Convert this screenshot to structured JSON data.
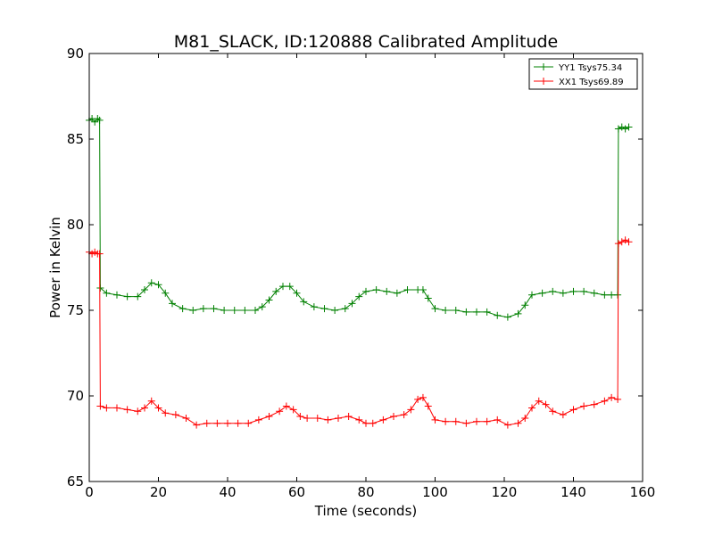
{
  "chart_data": {
    "type": "line",
    "title": "M81_SLACK, ID:120888 Calibrated Amplitude",
    "xlabel": "Time (seconds)",
    "ylabel": "Power in Kelvin",
    "xlim": [
      0,
      160
    ],
    "ylim": [
      65,
      90
    ],
    "xticks": [
      0,
      20,
      40,
      60,
      80,
      100,
      120,
      140,
      160
    ],
    "yticks": [
      65,
      70,
      75,
      80,
      85,
      90
    ],
    "grid": false,
    "legend_position": "top-right",
    "series": [
      {
        "name": "YY1 Tsys75.34",
        "color": "#008000",
        "marker": "+",
        "points": [
          [
            0.0,
            86.1
          ],
          [
            0.8,
            86.2
          ],
          [
            1.6,
            86.0
          ],
          [
            2.4,
            86.2
          ],
          [
            3.0,
            86.1
          ],
          [
            3.2,
            76.3
          ],
          [
            5,
            76.0
          ],
          [
            8,
            75.9
          ],
          [
            11,
            75.8
          ],
          [
            14,
            75.8
          ],
          [
            16,
            76.2
          ],
          [
            18,
            76.6
          ],
          [
            20,
            76.5
          ],
          [
            22,
            76.0
          ],
          [
            24,
            75.4
          ],
          [
            27,
            75.1
          ],
          [
            30,
            75.0
          ],
          [
            33,
            75.1
          ],
          [
            36,
            75.1
          ],
          [
            39,
            75.0
          ],
          [
            42,
            75.0
          ],
          [
            45,
            75.0
          ],
          [
            48,
            75.0
          ],
          [
            50,
            75.2
          ],
          [
            52,
            75.6
          ],
          [
            54,
            76.1
          ],
          [
            56,
            76.4
          ],
          [
            58,
            76.4
          ],
          [
            60,
            76.0
          ],
          [
            62,
            75.5
          ],
          [
            65,
            75.2
          ],
          [
            68,
            75.1
          ],
          [
            71,
            75.0
          ],
          [
            74,
            75.1
          ],
          [
            76,
            75.4
          ],
          [
            78,
            75.8
          ],
          [
            80,
            76.1
          ],
          [
            83,
            76.2
          ],
          [
            86,
            76.1
          ],
          [
            89,
            76.0
          ],
          [
            92,
            76.2
          ],
          [
            95,
            76.2
          ],
          [
            96.5,
            76.2
          ],
          [
            98,
            75.7
          ],
          [
            100,
            75.1
          ],
          [
            103,
            75.0
          ],
          [
            106,
            75.0
          ],
          [
            109,
            74.9
          ],
          [
            112,
            74.9
          ],
          [
            115,
            74.9
          ],
          [
            118,
            74.7
          ],
          [
            121,
            74.6
          ],
          [
            124,
            74.8
          ],
          [
            126,
            75.3
          ],
          [
            128,
            75.9
          ],
          [
            131,
            76.0
          ],
          [
            134,
            76.1
          ],
          [
            137,
            76.0
          ],
          [
            140,
            76.1
          ],
          [
            143,
            76.1
          ],
          [
            146,
            76.0
          ],
          [
            149,
            75.9
          ],
          [
            151,
            75.9
          ],
          [
            152.8,
            75.9
          ],
          [
            153,
            85.6
          ],
          [
            154,
            85.7
          ],
          [
            155,
            85.6
          ],
          [
            156,
            85.7
          ]
        ]
      },
      {
        "name": "XX1 Tsys69.89",
        "color": "#ff0000",
        "marker": "+",
        "points": [
          [
            0.0,
            78.4
          ],
          [
            0.8,
            78.3
          ],
          [
            1.6,
            78.4
          ],
          [
            2.4,
            78.3
          ],
          [
            3.0,
            78.3
          ],
          [
            3.2,
            69.4
          ],
          [
            5,
            69.3
          ],
          [
            8,
            69.3
          ],
          [
            11,
            69.2
          ],
          [
            14,
            69.1
          ],
          [
            16,
            69.3
          ],
          [
            18,
            69.7
          ],
          [
            20,
            69.3
          ],
          [
            22,
            69.0
          ],
          [
            25,
            68.9
          ],
          [
            28,
            68.7
          ],
          [
            31,
            68.3
          ],
          [
            34,
            68.4
          ],
          [
            37,
            68.4
          ],
          [
            40,
            68.4
          ],
          [
            43,
            68.4
          ],
          [
            46,
            68.4
          ],
          [
            49,
            68.6
          ],
          [
            52,
            68.8
          ],
          [
            55,
            69.1
          ],
          [
            57,
            69.4
          ],
          [
            59,
            69.2
          ],
          [
            61,
            68.8
          ],
          [
            63,
            68.7
          ],
          [
            66,
            68.7
          ],
          [
            69,
            68.6
          ],
          [
            72,
            68.7
          ],
          [
            75,
            68.8
          ],
          [
            78,
            68.6
          ],
          [
            80,
            68.4
          ],
          [
            82,
            68.4
          ],
          [
            85,
            68.6
          ],
          [
            88,
            68.8
          ],
          [
            91,
            68.9
          ],
          [
            93,
            69.2
          ],
          [
            95,
            69.8
          ],
          [
            96.5,
            69.9
          ],
          [
            98,
            69.4
          ],
          [
            100,
            68.6
          ],
          [
            103,
            68.5
          ],
          [
            106,
            68.5
          ],
          [
            109,
            68.4
          ],
          [
            112,
            68.5
          ],
          [
            115,
            68.5
          ],
          [
            118,
            68.6
          ],
          [
            121,
            68.3
          ],
          [
            124,
            68.4
          ],
          [
            126,
            68.7
          ],
          [
            128,
            69.3
          ],
          [
            130,
            69.7
          ],
          [
            132,
            69.5
          ],
          [
            134,
            69.1
          ],
          [
            137,
            68.9
          ],
          [
            140,
            69.2
          ],
          [
            143,
            69.4
          ],
          [
            146,
            69.5
          ],
          [
            149,
            69.7
          ],
          [
            151,
            69.9
          ],
          [
            152.8,
            69.8
          ],
          [
            153,
            78.9
          ],
          [
            154,
            79.0
          ],
          [
            155,
            79.1
          ],
          [
            156,
            79.0
          ]
        ]
      }
    ]
  }
}
